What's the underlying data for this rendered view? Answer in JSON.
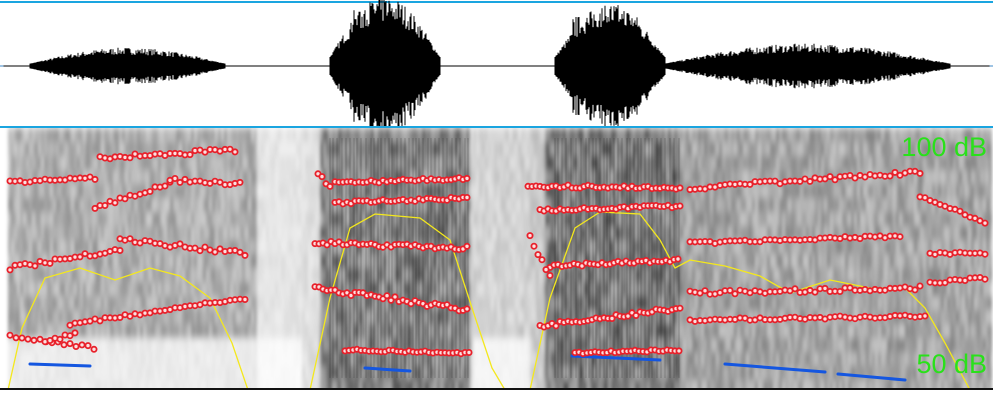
{
  "spectrogram": {
    "db_max_label": "100 dB",
    "db_min_label": "50 dB",
    "time_range_s": [
      0.0,
      1.0
    ],
    "formant_marker_color": "#e8202a",
    "pitch_curve_color": "#f4e81c",
    "intensity_curve_color": "#1456e0",
    "selection_line_color": "#1aa5e0",
    "label_color": "#29e11a"
  }
}
